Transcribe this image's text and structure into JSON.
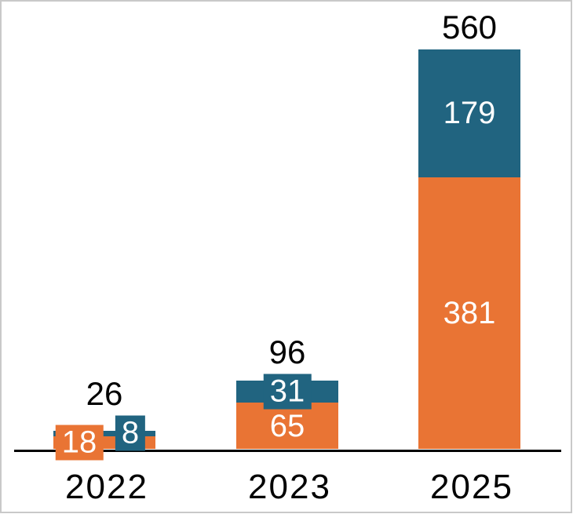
{
  "chart_data": {
    "type": "bar",
    "stacked": true,
    "categories": [
      "2022",
      "2023",
      "2025"
    ],
    "series": [
      {
        "name": "orange-series",
        "color": "#E97434",
        "values": [
          18,
          65,
          381
        ]
      },
      {
        "name": "blue-series",
        "color": "#216480",
        "values": [
          8,
          31,
          179
        ]
      }
    ],
    "totals": [
      26,
      96,
      560
    ],
    "value_labels": {
      "inside_color": "#FFFFFF",
      "callout_style": "colored box matching series"
    },
    "layout_hints": {
      "grid": false,
      "y_axis_visible": false,
      "x_baseline_visible": true,
      "legend": false
    }
  },
  "colors": {
    "axis": "#000000",
    "total_label": "#000000",
    "category_label": "#000000",
    "background": "#FFFFFF",
    "border": "#C9C9C9"
  }
}
